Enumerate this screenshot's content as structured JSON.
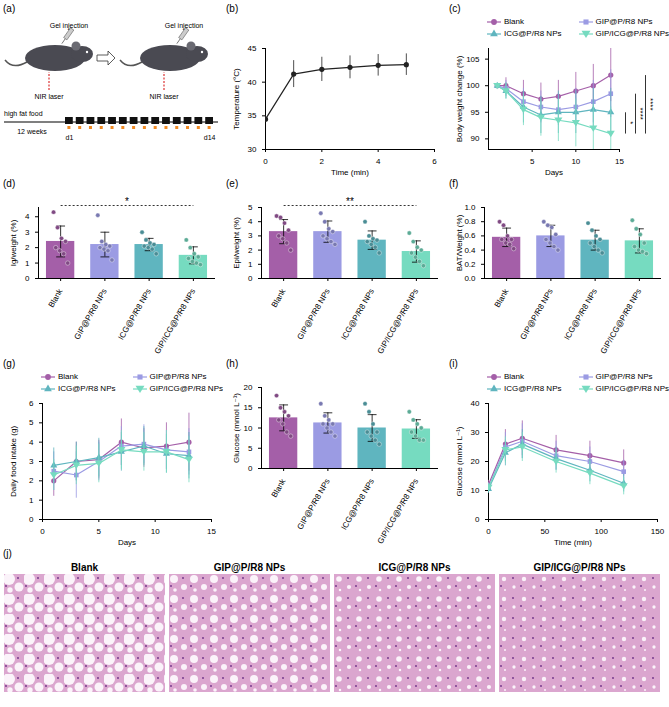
{
  "diagram": {
    "panel": "(a)",
    "mice": [
      {
        "labels": [
          "Gel injection",
          "NIR laser"
        ]
      },
      {
        "labels": [
          "Gel injection",
          "NIR laser"
        ]
      }
    ],
    "timeline": {
      "label": "high fat food",
      "duration": "12 weeks",
      "start": "d1",
      "end": "d14",
      "days": 14
    }
  },
  "chart_data": [
    {
      "panel": "(b)",
      "type": "line",
      "x_label": "Time (min)",
      "y_label": "Temperature (°C)",
      "x": [
        0,
        1,
        2,
        3,
        4,
        5
      ],
      "series": [
        {
          "color": "#222222",
          "marker": "circle",
          "values": [
            34.5,
            41.2,
            41.9,
            42.2,
            42.5,
            42.6
          ],
          "errors": [
            0.5,
            2.0,
            1.8,
            1.7,
            1.6,
            1.6
          ]
        }
      ],
      "xlim": [
        0,
        6
      ],
      "xticks": [
        0,
        2,
        4,
        6
      ],
      "ylim": [
        30,
        45
      ],
      "yticks": [
        30,
        35,
        40,
        45
      ]
    },
    {
      "panel": "(c)",
      "type": "line",
      "x_label": "Days",
      "y_label": "Body weight change (%)",
      "x": [
        1,
        2,
        4,
        6,
        8,
        10,
        12,
        14
      ],
      "series": [
        {
          "name": "Blank",
          "color": "#a45fa8",
          "marker": "circle",
          "values": [
            100,
            100,
            98.5,
            97.5,
            98,
            99,
            100,
            102
          ],
          "errors": [
            0,
            1.5,
            2.5,
            3,
            3,
            3.5,
            4,
            5
          ]
        },
        {
          "name": "GIP@P/R8 NPs",
          "color": "#9b9be3",
          "marker": "square",
          "values": [
            100,
            99.5,
            97,
            96,
            95.5,
            96,
            97,
            98.5
          ],
          "errors": [
            0,
            1.5,
            2.5,
            3,
            3,
            3.5,
            4,
            4.5
          ]
        },
        {
          "name": "ICG@P/R8 NPs",
          "color": "#5fb5bf",
          "marker": "triangle",
          "values": [
            100,
            99,
            96,
            94.5,
            95,
            95,
            95.5,
            95
          ],
          "errors": [
            0,
            1.5,
            3,
            3.5,
            4,
            4,
            4,
            4.5
          ]
        },
        {
          "name": "GIP/ICG@P/R8 NPs",
          "color": "#76dbc0",
          "marker": "triangle-down",
          "values": [
            100,
            99,
            95.5,
            94,
            93.5,
            93,
            92,
            91
          ],
          "errors": [
            0,
            1.5,
            3,
            3.5,
            4,
            4.5,
            4.5,
            5
          ]
        }
      ],
      "xlim": [
        0,
        15
      ],
      "xticks": [
        5,
        10,
        15
      ],
      "ylim": [
        88,
        107
      ],
      "yticks": [
        90,
        95,
        100,
        105
      ],
      "legend": "top",
      "significance": [
        {
          "from": "ICG@P/R8 NPs",
          "to": "GIP/ICG@P/R8 NPs",
          "label": "*"
        },
        {
          "from": "GIP@P/R8 NPs",
          "to": "GIP/ICG@P/R8 NPs",
          "label": "****"
        },
        {
          "from": "Blank",
          "to": "GIP/ICG@P/R8 NPs",
          "label": "****"
        }
      ]
    },
    {
      "panel": "(d)",
      "type": "bar",
      "y_label": "Ig/weight (%)",
      "categories": [
        "Blank",
        "GIP@P/R8 NPs",
        "ICG@P/R8 NPs",
        "GIP/ICG@P/R8 NPs"
      ],
      "colors": [
        "#a45fa8",
        "#9b9be3",
        "#5fb5bf",
        "#76dbc0"
      ],
      "values": [
        2.4,
        2.2,
        2.2,
        1.5
      ],
      "errors": [
        1.0,
        0.8,
        0.4,
        0.55
      ],
      "points": [
        [
          4.3,
          3.3,
          2.6,
          2.4,
          2.0,
          1.8,
          1.6,
          1.0
        ],
        [
          4.1,
          2.4,
          2.2,
          2.1,
          2.0,
          1.9,
          1.8,
          1.2
        ],
        [
          3.0,
          2.5,
          2.3,
          2.2,
          2.1,
          2.0,
          1.9,
          1.6
        ],
        [
          2.5,
          2.0,
          1.6,
          1.4,
          1.3,
          1.1,
          1.0,
          0.9
        ]
      ],
      "ylim": [
        0,
        4.6
      ],
      "yticks": [
        0,
        1,
        2,
        3,
        4
      ],
      "significance": [
        {
          "from": "Blank",
          "to": "GIP/ICG@P/R8 NPs",
          "label": "*"
        }
      ]
    },
    {
      "panel": "(e)",
      "type": "bar",
      "y_label": "Epi/weight (%)",
      "categories": [
        "Blank",
        "GIP@P/R8 NPs",
        "ICG@P/R8 NPs",
        "GIP/ICG@P/R8 NPs"
      ],
      "colors": [
        "#a45fa8",
        "#9b9be3",
        "#5fb5bf",
        "#76dbc0"
      ],
      "values": [
        3.3,
        3.3,
        2.7,
        1.9
      ],
      "errors": [
        0.85,
        0.75,
        0.65,
        0.75
      ],
      "points": [
        [
          4.4,
          4.3,
          3.9,
          3.4,
          3.0,
          2.8,
          2.5,
          2.0
        ],
        [
          4.6,
          4.0,
          3.5,
          3.3,
          3.0,
          2.8,
          2.6,
          2.4
        ],
        [
          4.0,
          3.0,
          2.8,
          2.7,
          2.6,
          2.4,
          2.2,
          1.8
        ],
        [
          3.2,
          2.6,
          2.2,
          2.0,
          1.8,
          1.5,
          1.2,
          0.9
        ]
      ],
      "ylim": [
        0,
        5
      ],
      "yticks": [
        0,
        1,
        2,
        3,
        4,
        5
      ],
      "significance": [
        {
          "from": "Blank",
          "to": "GIP/ICG@P/R8 NPs",
          "label": "**"
        }
      ]
    },
    {
      "panel": "(f)",
      "type": "bar",
      "y_label": "BAT/Weight (%)",
      "categories": [
        "Blank",
        "GIP@P/R8 NPs",
        "ICG@P/R8 NPs",
        "GIP/ICG@P/R8 NPs"
      ],
      "colors": [
        "#a45fa8",
        "#9b9be3",
        "#5fb5bf",
        "#76dbc0"
      ],
      "values": [
        0.58,
        0.6,
        0.54,
        0.53
      ],
      "errors": [
        0.13,
        0.15,
        0.14,
        0.17
      ],
      "points": [
        [
          0.8,
          0.75,
          0.6,
          0.55,
          0.55,
          0.5,
          0.48,
          0.42
        ],
        [
          0.8,
          0.75,
          0.72,
          0.62,
          0.55,
          0.5,
          0.45,
          0.4
        ],
        [
          0.78,
          0.68,
          0.6,
          0.55,
          0.5,
          0.45,
          0.4,
          0.36
        ],
        [
          0.82,
          0.7,
          0.62,
          0.5,
          0.45,
          0.4,
          0.38,
          0.35
        ]
      ],
      "ylim": [
        0,
        1
      ],
      "yticks": [
        {
          "value": 0,
          "label": "0.0"
        },
        {
          "value": 0.2,
          "label": "0.2"
        },
        {
          "value": 0.4,
          "label": "0.4"
        },
        {
          "value": 0.6,
          "label": "0.6"
        },
        {
          "value": 0.8,
          "label": "0.8"
        },
        {
          "value": 1,
          "label": "1.0"
        }
      ]
    },
    {
      "panel": "(g)",
      "type": "line",
      "x_label": "Days",
      "y_label": "Daily food intake (g)",
      "x": [
        1,
        3,
        5,
        7,
        9,
        11,
        13
      ],
      "series": [
        {
          "name": "Blank",
          "color": "#a45fa8",
          "marker": "circle",
          "values": [
            2.0,
            3.0,
            3.1,
            4.0,
            3.7,
            3.8,
            4.0
          ],
          "errors": [
            0.8,
            1.0,
            1.0,
            1.2,
            1.0,
            1.2,
            1.5
          ]
        },
        {
          "name": "GIP@P/R8 NPs",
          "color": "#9b9be3",
          "marker": "square",
          "values": [
            2.5,
            2.3,
            3.0,
            3.8,
            3.9,
            3.6,
            3.5
          ],
          "errors": [
            1.0,
            1.2,
            1.0,
            1.0,
            1.0,
            1.0,
            1.2
          ]
        },
        {
          "name": "ICG@P/R8 NPs",
          "color": "#5fb5bf",
          "marker": "triangle",
          "values": [
            2.8,
            3.0,
            3.2,
            3.5,
            3.8,
            3.4,
            3.3
          ],
          "errors": [
            0.9,
            1.0,
            1.0,
            1.0,
            1.0,
            1.0,
            1.2
          ]
        },
        {
          "name": "GIP/ICG@P/R8 NPs",
          "color": "#76dbc0",
          "marker": "triangle-down",
          "values": [
            2.3,
            2.8,
            2.9,
            3.6,
            3.5,
            3.5,
            3.1
          ],
          "errors": [
            0.8,
            1.0,
            1.0,
            1.0,
            1.0,
            1.1,
            1.2
          ]
        }
      ],
      "xlim": [
        0,
        15
      ],
      "xticks": [
        0,
        5,
        10,
        15
      ],
      "ylim": [
        0,
        6
      ],
      "yticks": [
        0,
        1,
        2,
        3,
        4,
        5,
        6
      ],
      "legend": "top"
    },
    {
      "panel": "(h)",
      "type": "bar",
      "y_label": "Glucose (mmol L⁻¹)",
      "categories": [
        "Blank",
        "GIP@P/R8 NPs",
        "ICG@P/R8 NPs",
        "GIP/ICG@P/R8 NPs"
      ],
      "colors": [
        "#a45fa8",
        "#9b9be3",
        "#5fb5bf",
        "#76dbc0"
      ],
      "values": [
        12.5,
        11.25,
        10,
        9.75
      ],
      "errors": [
        3.2,
        2.5,
        3.3,
        2.3
      ],
      "points": [
        [
          18,
          15,
          14,
          13,
          12,
          11,
          9,
          8
        ],
        [
          16,
          13,
          12,
          11,
          11,
          10,
          9,
          8
        ],
        [
          16,
          14,
          11,
          9,
          9,
          8,
          7,
          6
        ],
        [
          14,
          12,
          11,
          10,
          9,
          8,
          7,
          7
        ]
      ],
      "ylim": [
        0,
        20
      ],
      "yticks": [
        0,
        5,
        10,
        15,
        20
      ]
    },
    {
      "panel": "(i)",
      "type": "line",
      "x_label": "Time (min)",
      "y_label": "Glucose (mmol L⁻¹)",
      "x": [
        0,
        15,
        30,
        60,
        90,
        120
      ],
      "series": [
        {
          "name": "Blank",
          "color": "#a45fa8",
          "marker": "circle",
          "values": [
            12,
            26,
            28,
            24,
            22,
            19.5
          ],
          "errors": [
            1.5,
            5,
            6,
            5,
            5,
            4.5
          ]
        },
        {
          "name": "GIP@P/R8 NPs",
          "color": "#9b9be3",
          "marker": "square",
          "values": [
            11,
            25,
            27,
            22,
            20,
            16.5
          ],
          "errors": [
            1.5,
            5,
            6,
            5,
            5,
            4
          ]
        },
        {
          "name": "ICG@P/R8 NPs",
          "color": "#5fb5bf",
          "marker": "triangle",
          "values": [
            10.5,
            23,
            26,
            21,
            17,
            12.5
          ],
          "errors": [
            1.5,
            4.5,
            5,
            4,
            4,
            3
          ]
        },
        {
          "name": "GIP/ICG@P/R8 NPs",
          "color": "#76dbc0",
          "marker": "triangle-down",
          "values": [
            11,
            24,
            25,
            20,
            16,
            11.5
          ],
          "errors": [
            1.5,
            4.5,
            5,
            4,
            4,
            3
          ]
        }
      ],
      "xlim": [
        0,
        150
      ],
      "xticks": [
        0,
        50,
        100,
        150
      ],
      "ylim": [
        0,
        40
      ],
      "yticks": [
        0,
        10,
        20,
        30,
        40
      ],
      "legend": "top"
    }
  ],
  "images": {
    "panel": "(j)",
    "titles": [
      "Blank",
      "GIP@P/R8 NPs",
      "ICG@P/R8 NPs",
      "GIP/ICG@P/R8 NPs"
    ]
  }
}
